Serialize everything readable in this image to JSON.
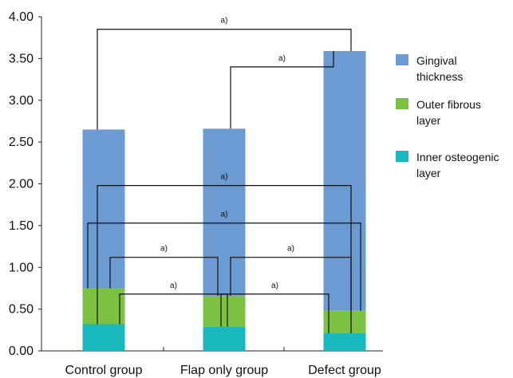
{
  "chart_data": {
    "type": "bar",
    "stacked": true,
    "categories": [
      "Control group",
      "Flap only group",
      "Defect group"
    ],
    "series": [
      {
        "name": "Inner osteogenic layer",
        "color": "#18b8bf",
        "values": [
          0.32,
          0.29,
          0.21
        ]
      },
      {
        "name": "Outer fibrous layer",
        "color": "#7dc142",
        "values": [
          0.43,
          0.37,
          0.27
        ]
      },
      {
        "name": "Gingival thickness",
        "color": "#6b9bd2",
        "values": [
          1.9,
          2.0,
          3.11
        ]
      }
    ],
    "legend_order": [
      "Gingival thickness",
      "Outer fibrous layer",
      "Inner osteogenic layer"
    ],
    "legend_position": "right",
    "ylim": [
      0,
      4.0
    ],
    "yticks": [
      "0.00",
      "0.50",
      "1.00",
      "1.50",
      "2.00",
      "2.50",
      "3.00",
      "3.50",
      "4.00"
    ],
    "significance_label": "a)",
    "significance_brackets": [
      {
        "series": "Gingival thickness",
        "from": "Control group",
        "to": "Defect group",
        "label": "a)"
      },
      {
        "series": "Gingival thickness",
        "from": "Flap only group",
        "to": "Defect group",
        "label": "a)"
      },
      {
        "series": "Inner osteogenic layer",
        "from": "Control group",
        "to": "Defect group",
        "label": "a)"
      },
      {
        "series": "Outer fibrous layer",
        "from": "Control group",
        "to": "Defect group",
        "label": "a)"
      },
      {
        "series": "Outer fibrous layer",
        "from": "Control group",
        "to": "Flap only group",
        "label": "a)"
      },
      {
        "series": "Outer fibrous layer",
        "from": "Flap only group",
        "to": "Defect group",
        "label": "a)"
      },
      {
        "series": "Inner osteogenic layer",
        "from": "Control group",
        "to": "Flap only group",
        "label": "a)"
      },
      {
        "series": "Inner osteogenic layer",
        "from": "Flap only group",
        "to": "Defect group",
        "label": "a)"
      }
    ]
  }
}
